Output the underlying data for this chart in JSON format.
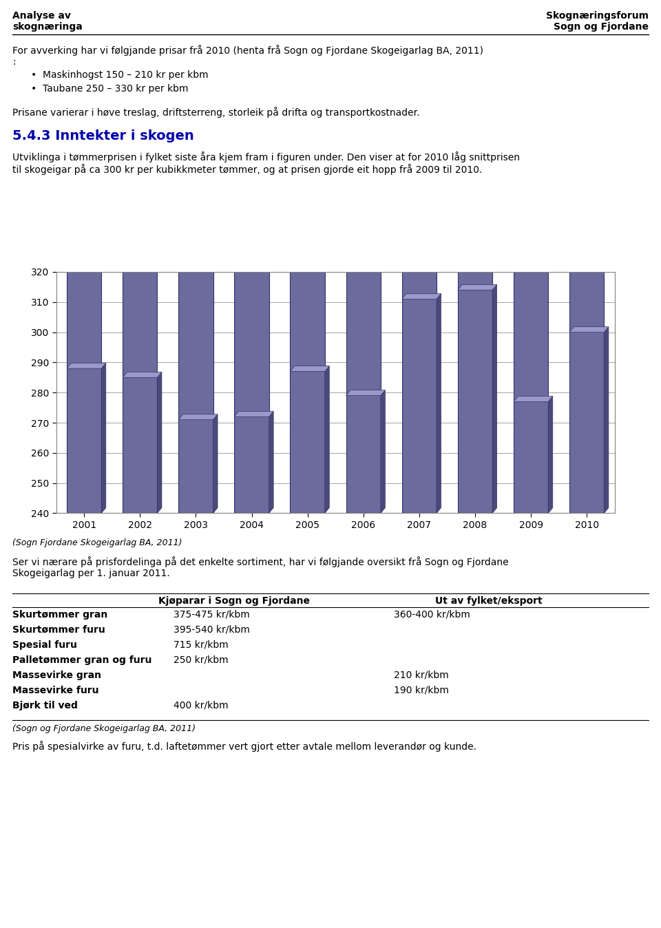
{
  "header_left_line1": "Analyse av",
  "header_left_line2": "skognæringa",
  "header_right_line1": "Skognæringsforum",
  "header_right_line2": "Sogn og Fjordane",
  "intro_text": "For avverking har vi følgjande prisar frå 2010 (henta frå Sogn og Fjordane Skogeigarlag BA, 2011)\n:",
  "bullet1": "Maskinhogst 150 – 210 kr per kbm",
  "bullet2": "Taubane 250 – 330 kr per kbm",
  "prisane_text": "Prisane varierar i høve treslag, driftsterreng, storleik på drifta og transportkostnader.",
  "section_title": "5.4.3 Inntekter i skogen",
  "section_title_color": "#0000AA",
  "utviklinga_text": "Utviklinga i tømmerprisen i fylket siste åra kjem fram i figuren under. Den viser at for 2010 låg snittprisen\ntil skogeigar på ca 300 kr per kubikkmeter tømmer, og at prisen gjorde eit hopp frå 2009 til 2010.",
  "years": [
    2001,
    2002,
    2003,
    2004,
    2005,
    2006,
    2007,
    2008,
    2009,
    2010
  ],
  "values": [
    288,
    285,
    271,
    272,
    287,
    279,
    311,
    314,
    277,
    300
  ],
  "bar_color": "#6B6B9E",
  "bar_edge_color": "#333366",
  "bar_right_color": "#4A4A7A",
  "bar_top_color": "#9999CC",
  "ylim_min": 240,
  "ylim_max": 320,
  "yticks": [
    240,
    250,
    260,
    270,
    280,
    290,
    300,
    310,
    320
  ],
  "source_note": "(Sogn Fjordane Skogeigarlag BA, 2011)",
  "followup_text": "Ser vi nærare på prisfordelinga på det enkelte sortiment, har vi følgjande oversikt frå Sogn og Fjordane\nSkogeigarlag per 1. januar 2011.",
  "table_headers": [
    "Kjøparar i Sogn og Fjordane",
    "Ut av fylket/eksport"
  ],
  "table_rows": [
    [
      "Skurtømmer gran",
      "375-475 kr/kbm",
      "360-400 kr/kbm"
    ],
    [
      "Skurtømmer furu",
      "395-540 kr/kbm",
      ""
    ],
    [
      "Spesial furu",
      "715 kr/kbm",
      ""
    ],
    [
      "Palletømmer gran og furu",
      "250 kr/kbm",
      ""
    ],
    [
      "Massevirke gran",
      "",
      "210 kr/kbm"
    ],
    [
      "Massevirke furu",
      "",
      "190 kr/kbm"
    ],
    [
      "Bjørk til ved",
      "400 kr/kbm",
      ""
    ]
  ],
  "table_source": "(Sogn og Fjordane Skogeigarlag BA, 2011)",
  "final_text": "Pris på spesialvirke av furu, t.d. laftetømmer vert gjort etter avtale mellom leverandør og kunde."
}
